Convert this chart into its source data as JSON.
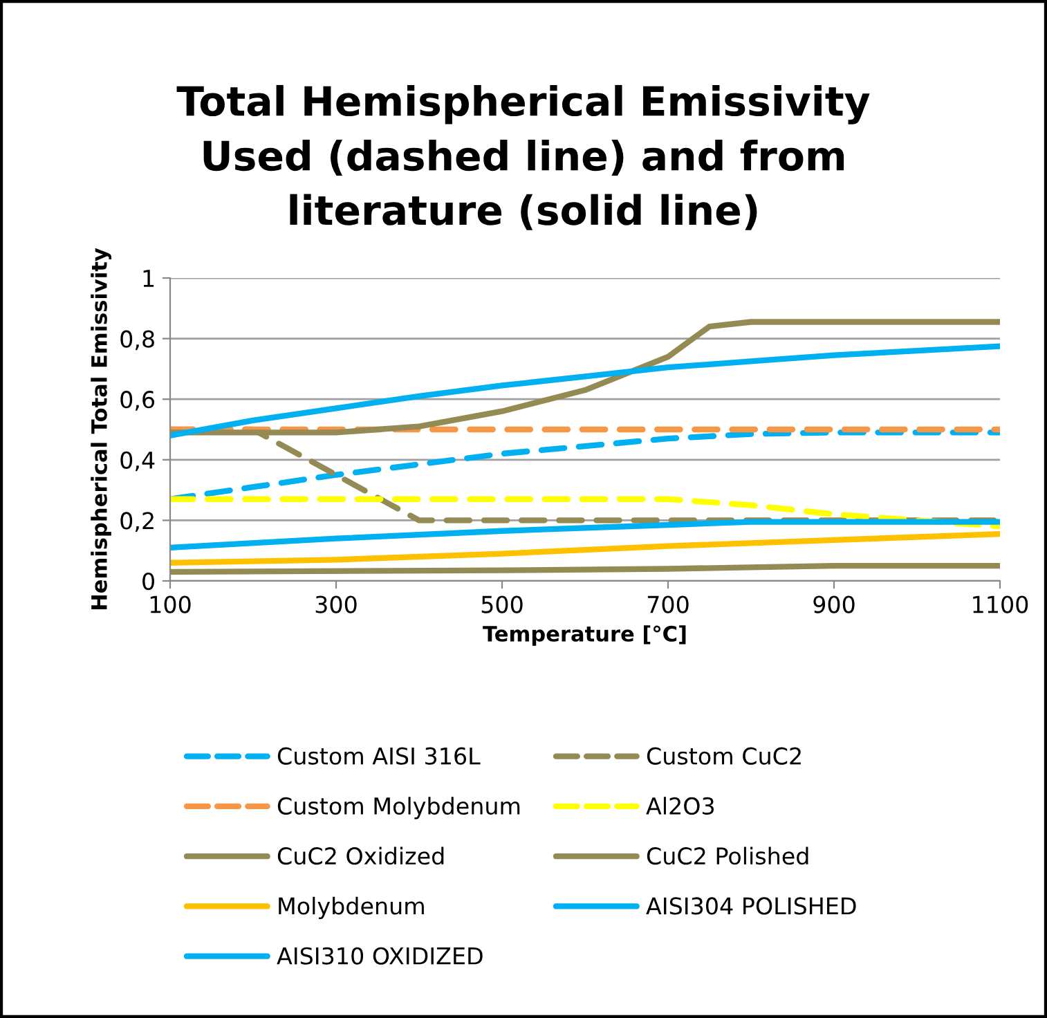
{
  "chart_data": {
    "type": "line",
    "title": "Total Hemispherical Emissivity\nUsed (dashed line) and from\nliterature (solid line)",
    "xlabel": "Temperature [°C]",
    "ylabel": "Hemispherical Total Emissivity",
    "xlim": [
      100,
      1100
    ],
    "xticks": [
      100,
      300,
      500,
      700,
      900,
      1100
    ],
    "ylim": [
      0,
      1
    ],
    "yticks": [
      {
        "value": 0,
        "label": "0"
      },
      {
        "value": 0.2,
        "label": "0,2"
      },
      {
        "value": 0.4,
        "label": "0,4"
      },
      {
        "value": 0.6,
        "label": "0,6"
      },
      {
        "value": 0.8,
        "label": "0,8"
      },
      {
        "value": 1,
        "label": "1"
      }
    ],
    "grid": "y",
    "legend": "bottom",
    "marker": "none",
    "series": [
      {
        "name": "Custom AISI 316L",
        "color": "#00b0f0",
        "line_style": "dashed",
        "x": [
          100,
          200,
          300,
          400,
          500,
          600,
          700,
          800,
          900,
          1100
        ],
        "values": [
          0.27,
          0.31,
          0.35,
          0.385,
          0.42,
          0.445,
          0.47,
          0.485,
          0.49,
          0.49
        ]
      },
      {
        "name": "Custom CuC2",
        "color": "#948a54",
        "line_style": "dashed",
        "x": [
          100,
          200,
          400,
          1100
        ],
        "values": [
          0.5,
          0.5,
          0.2,
          0.2
        ]
      },
      {
        "name": "Custom Molybdenum",
        "color": "#f79646",
        "line_style": "dashed",
        "x": [
          100,
          1100
        ],
        "values": [
          0.5,
          0.5
        ]
      },
      {
        "name": "Al2O3",
        "color": "#ffff00",
        "line_style": "dashed",
        "x": [
          100,
          700,
          800,
          900,
          1000,
          1100
        ],
        "values": [
          0.27,
          0.27,
          0.25,
          0.22,
          0.2,
          0.18
        ]
      },
      {
        "name": "CuC2 Oxidized",
        "color": "#948a54",
        "line_style": "solid",
        "x": [
          100,
          300,
          400,
          500,
          600,
          700,
          750,
          800,
          1100
        ],
        "values": [
          0.49,
          0.49,
          0.51,
          0.56,
          0.63,
          0.74,
          0.84,
          0.855,
          0.855
        ]
      },
      {
        "name": "CuC2 Polished",
        "color": "#948a54",
        "line_style": "solid",
        "x": [
          100,
          500,
          700,
          900,
          1100
        ],
        "values": [
          0.03,
          0.035,
          0.04,
          0.05,
          0.05
        ]
      },
      {
        "name": "Molybdenum",
        "color": "#ffc000",
        "line_style": "solid",
        "x": [
          100,
          300,
          500,
          700,
          900,
          1100
        ],
        "values": [
          0.06,
          0.07,
          0.09,
          0.115,
          0.135,
          0.155
        ]
      },
      {
        "name": "AISI304 POLISHED",
        "color": "#00b0f0",
        "line_style": "solid",
        "x": [
          100,
          300,
          500,
          700,
          800,
          1100
        ],
        "values": [
          0.11,
          0.14,
          0.165,
          0.185,
          0.195,
          0.195
        ]
      },
      {
        "name": "AISI310 OXIDIZED",
        "color": "#00b0f0",
        "line_style": "solid",
        "x": [
          100,
          200,
          300,
          400,
          500,
          600,
          700,
          800,
          900,
          1000,
          1100
        ],
        "values": [
          0.48,
          0.53,
          0.57,
          0.61,
          0.645,
          0.675,
          0.705,
          0.725,
          0.745,
          0.76,
          0.775
        ]
      }
    ]
  }
}
